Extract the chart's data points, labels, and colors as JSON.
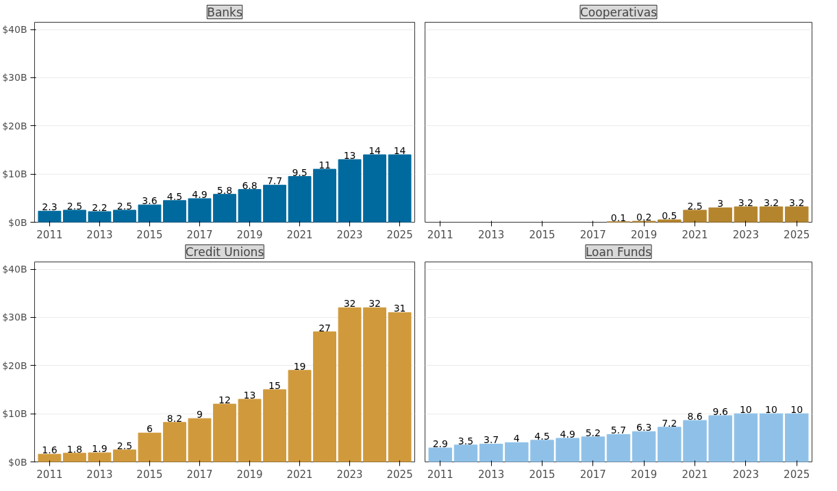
{
  "chart_data": [
    {
      "type": "bar",
      "title": "Banks",
      "x": [
        2011,
        2012,
        2013,
        2014,
        2015,
        2016,
        2017,
        2018,
        2019,
        2020,
        2021,
        2022,
        2023,
        2024,
        2025
      ],
      "xlim": [
        2010.4,
        2025.6
      ],
      "xticks": [
        2011,
        2013,
        2015,
        2017,
        2019,
        2021,
        2023,
        2025
      ],
      "ylim": [
        0,
        41.5
      ],
      "yticks": [
        {
          "value": 0,
          "label": "$0B"
        },
        {
          "value": 10,
          "label": "$10B"
        },
        {
          "value": 20,
          "label": "$20B"
        },
        {
          "value": 30,
          "label": "$30B"
        },
        {
          "value": 40,
          "label": "$40B"
        }
      ],
      "grid": "y",
      "data_labels": true,
      "series": [
        {
          "color": "#006a9e",
          "values": [
            2.3,
            2.5,
            2.2,
            2.5,
            3.6,
            4.5,
            4.9,
            5.8,
            6.8,
            7.7,
            9.5,
            11,
            13,
            14,
            14
          ]
        }
      ]
    },
    {
      "type": "bar",
      "title": "Cooperativas",
      "xlim": [
        2010.4,
        2025.6
      ],
      "xticks": [
        2011,
        2013,
        2015,
        2017,
        2019,
        2021,
        2023,
        2025
      ],
      "ylim": [
        0,
        41.5
      ],
      "yticks": [
        {
          "value": 0,
          "label": null
        },
        {
          "value": 10,
          "label": null
        },
        {
          "value": 20,
          "label": null
        },
        {
          "value": 30,
          "label": null
        },
        {
          "value": 40,
          "label": null
        }
      ],
      "grid": "y",
      "data_labels": true,
      "tick_labels": "x",
      "series": [
        {
          "color": "#b5852e",
          "x": [
            2018,
            2019,
            2020,
            2021,
            2022,
            2023,
            2024,
            2025
          ],
          "values": [
            0.1,
            0.2,
            0.5,
            2.5,
            3,
            3.2,
            3.2,
            3.2
          ]
        }
      ]
    },
    {
      "type": "bar",
      "title": "Credit Unions",
      "x": [
        2011,
        2012,
        2013,
        2014,
        2015,
        2016,
        2017,
        2018,
        2019,
        2020,
        2021,
        2022,
        2023,
        2024,
        2025
      ],
      "xlim": [
        2010.4,
        2025.6
      ],
      "xticks": [
        2011,
        2013,
        2015,
        2017,
        2019,
        2021,
        2023,
        2025
      ],
      "ylim": [
        0,
        41.5
      ],
      "yticks": [
        {
          "value": 0,
          "label": "$0B"
        },
        {
          "value": 10,
          "label": "$10B"
        },
        {
          "value": 20,
          "label": "$20B"
        },
        {
          "value": 30,
          "label": "$30B"
        },
        {
          "value": 40,
          "label": "$40B"
        }
      ],
      "grid": "y",
      "data_labels": true,
      "series": [
        {
          "color": "#d09a3c",
          "values": [
            1.6,
            1.8,
            1.9,
            2.5,
            6,
            8.2,
            9,
            12,
            13,
            15,
            19,
            27,
            32,
            32,
            31
          ]
        }
      ]
    },
    {
      "type": "bar",
      "title": "Loan Funds",
      "x": [
        2011,
        2012,
        2013,
        2014,
        2015,
        2016,
        2017,
        2018,
        2019,
        2020,
        2021,
        2022,
        2023,
        2024,
        2025
      ],
      "xlim": [
        2010.4,
        2025.6
      ],
      "xticks": [
        2011,
        2013,
        2015,
        2017,
        2019,
        2021,
        2023,
        2025
      ],
      "ylim": [
        0,
        41.5
      ],
      "yticks": [
        {
          "value": 0,
          "label": null
        },
        {
          "value": 10,
          "label": null
        },
        {
          "value": 20,
          "label": null
        },
        {
          "value": 30,
          "label": null
        },
        {
          "value": 40,
          "label": null
        }
      ],
      "grid": "y",
      "data_labels": true,
      "tick_labels": "x",
      "series": [
        {
          "color": "#8fc1e8",
          "values": [
            2.9,
            3.5,
            3.7,
            4,
            4.5,
            4.9,
            5.2,
            5.7,
            6.3,
            7.2,
            8.6,
            9.6,
            10,
            10,
            10
          ]
        }
      ]
    }
  ]
}
